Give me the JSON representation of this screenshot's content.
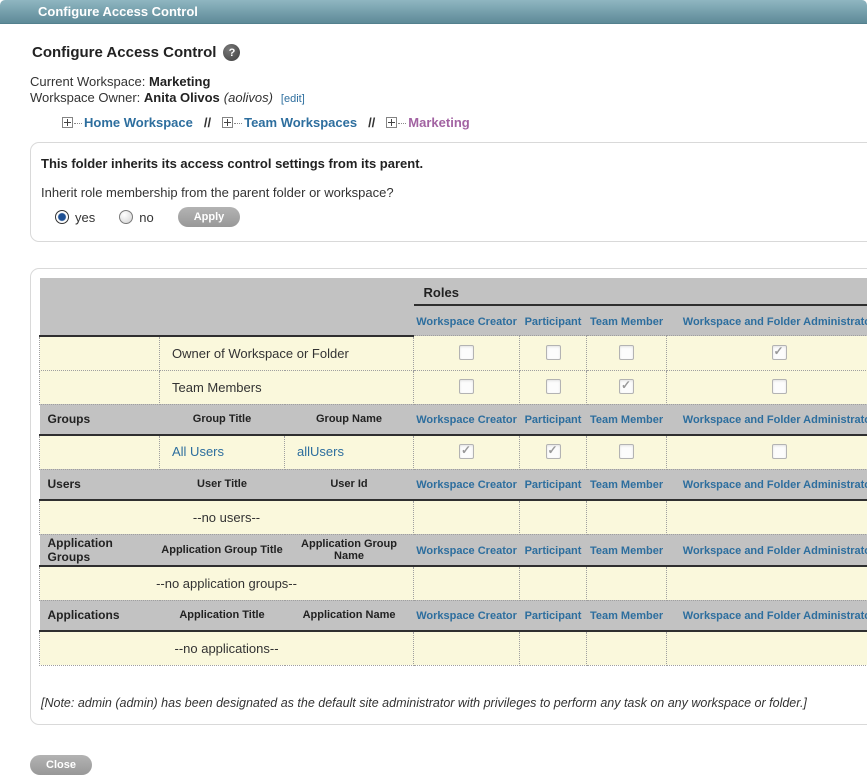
{
  "titlebar": {
    "title": "Configure Access Control"
  },
  "page": {
    "heading": "Configure Access Control",
    "current_workspace_label": "Current Workspace:",
    "current_workspace_value": "Marketing",
    "workspace_owner_label": "Workspace Owner:",
    "workspace_owner_name": "Anita Olivos",
    "workspace_owner_id": "(aolivos)",
    "edit_link": "[edit]"
  },
  "breadcrumb": {
    "separator": "//",
    "items": [
      {
        "label": "Home Workspace",
        "current": false
      },
      {
        "label": "Team Workspaces",
        "current": false
      },
      {
        "label": "Marketing",
        "current": true
      }
    ]
  },
  "inherit_box": {
    "message": "This folder inherits its access control settings from its parent.",
    "question": "Inherit role membership from the parent folder or workspace?",
    "options": [
      {
        "label": "yes",
        "selected": true
      },
      {
        "label": "no",
        "selected": false
      }
    ],
    "apply_label": "Apply"
  },
  "table": {
    "roles_header": "Roles",
    "role_columns": [
      "Workspace Creator",
      "Participant",
      "Team Member",
      "Workspace and Folder Administrator"
    ],
    "builtin_rows": [
      {
        "label": "Owner of Workspace or Folder",
        "checks": [
          false,
          false,
          false,
          true
        ]
      },
      {
        "label": "Team Members",
        "checks": [
          false,
          false,
          true,
          false
        ]
      }
    ],
    "sections": [
      {
        "name": "Groups",
        "col1": "Group Title",
        "col2": "Group Name",
        "rows": [
          {
            "title": "All Users",
            "name": "allUsers",
            "checks": [
              true,
              true,
              false,
              false
            ]
          }
        ],
        "empty": null
      },
      {
        "name": "Users",
        "col1": "User Title",
        "col2": "User Id",
        "rows": [],
        "empty": "--no users--"
      },
      {
        "name": "Application Groups",
        "col1": "Application Group Title",
        "col2": "Application Group Name",
        "rows": [],
        "empty": "--no application groups--"
      },
      {
        "name": "Applications",
        "col1": "Application Title",
        "col2": "Application Name",
        "rows": [],
        "empty": "--no applications--"
      }
    ]
  },
  "note": "[Note: admin (admin) has been designated as the default site administrator with privileges to perform any task on any workspace or folder.]",
  "close_label": "Close",
  "colors": {
    "titlebar-top": "#8fb6c1",
    "titlebar-bottom": "#5e8a98",
    "link-blue": "#2d6e9e",
    "crumb-purple": "#a263a2",
    "header-gray": "#c2c2c2",
    "cream": "#faf8dc"
  }
}
